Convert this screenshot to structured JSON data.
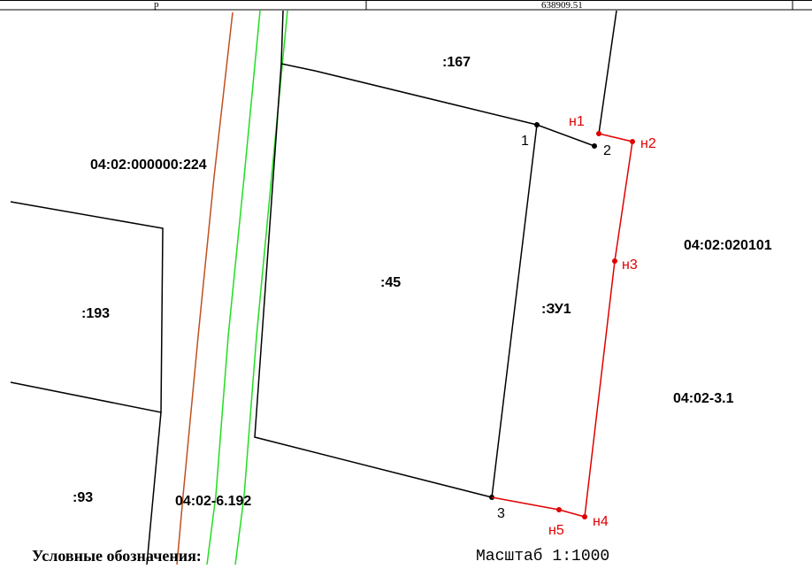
{
  "header_row": {
    "left_value": "р",
    "right_value": "638909.51"
  },
  "parcels": {
    "p167": ":167",
    "p224": "04:02:000000:224",
    "p45": ":45",
    "p193": ":193",
    "pZY1": ":ЗУ1",
    "p93": ":93",
    "p6192": "04:02-6.192",
    "q020101": "04:02:020101",
    "z31": "04:02-3.1"
  },
  "points": {
    "black_1": "1",
    "black_2": "2",
    "black_3": "3",
    "red_n1": "н1",
    "red_n2": "н2",
    "red_n3": "н3",
    "red_n4": "н4",
    "red_n5": "н5"
  },
  "footer": {
    "legend_title": "Условные обозначения:",
    "scale": "Масштаб 1:1000"
  },
  "colors": {
    "new_boundary": "#e00000",
    "existing_boundary": "#000000",
    "road_line": "#c0501f",
    "green_line": "#22dd22"
  }
}
